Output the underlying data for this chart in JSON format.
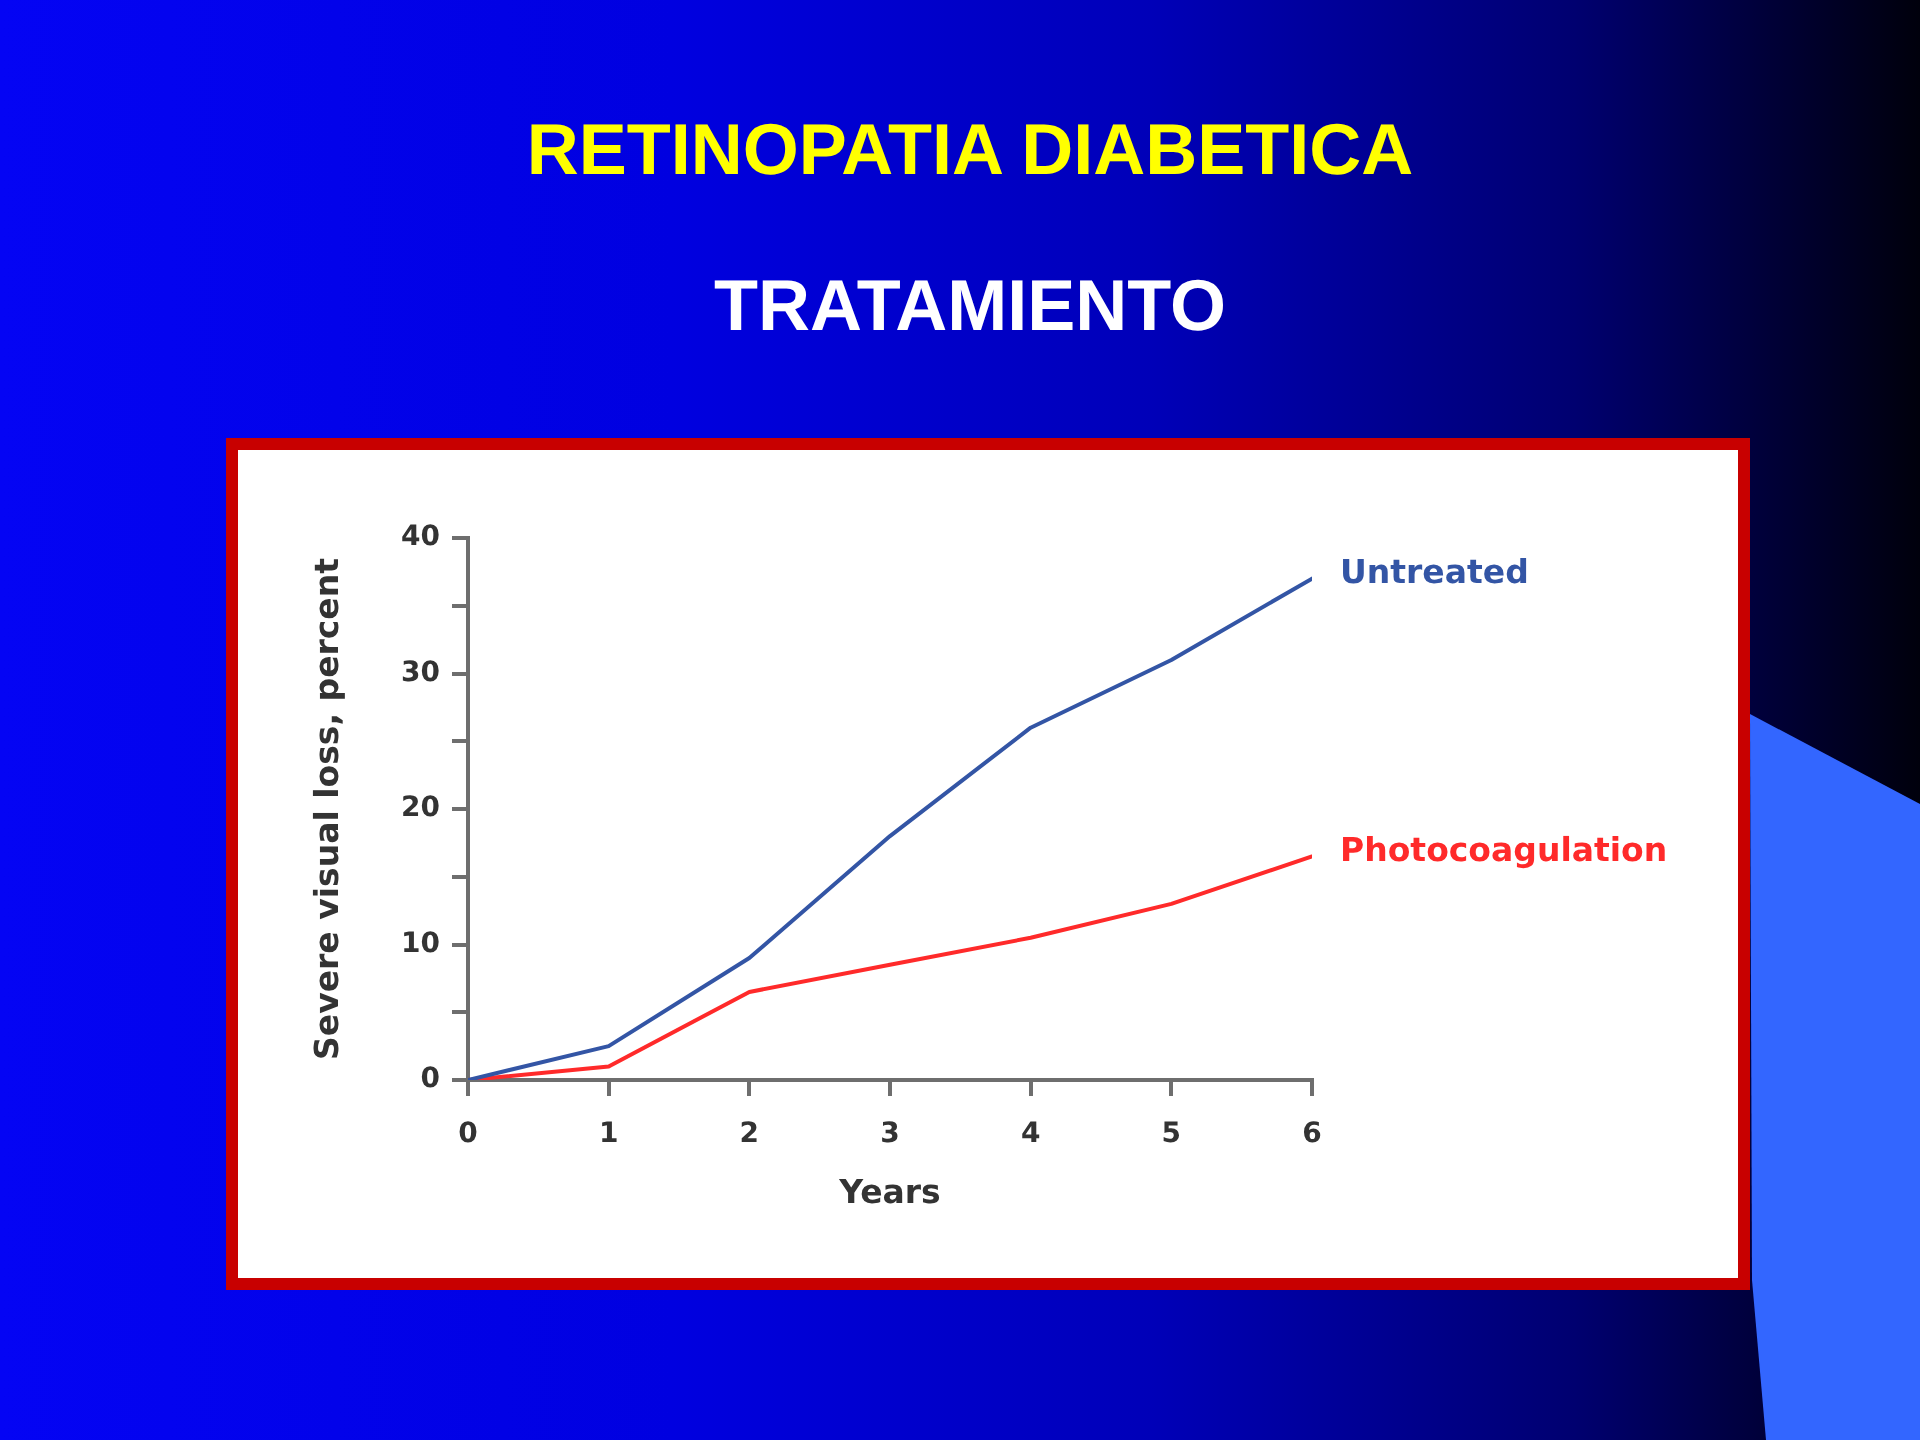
{
  "chart_data": {
    "type": "line",
    "title": "RETINOPATIA DIABETICA",
    "subtitle": "TRATAMIENTO",
    "xlabel": "Years",
    "ylabel": "Severe visual loss, percent",
    "x": [
      0,
      1,
      2,
      3,
      4,
      5,
      6
    ],
    "series": [
      {
        "name": "Untreated",
        "color": "#3355a5",
        "values": [
          0,
          2.5,
          9,
          18,
          26,
          31,
          37
        ]
      },
      {
        "name": "Photocoagulation",
        "color": "#ff2a2a",
        "values": [
          0,
          1,
          6.5,
          8.5,
          10.5,
          13,
          16.5
        ]
      }
    ],
    "xlim": [
      0,
      6
    ],
    "xticks": [
      0,
      1,
      2,
      3,
      4,
      5,
      6
    ],
    "ylim": [
      0,
      40
    ],
    "yticks": [
      0,
      {
        "value": 5,
        "label": null
      },
      10,
      {
        "value": 15,
        "label": null
      },
      20,
      {
        "value": 25,
        "label": null
      },
      30,
      {
        "value": 35,
        "label": null
      },
      40
    ],
    "grid": false,
    "marker": "none",
    "line_style": "solid"
  }
}
